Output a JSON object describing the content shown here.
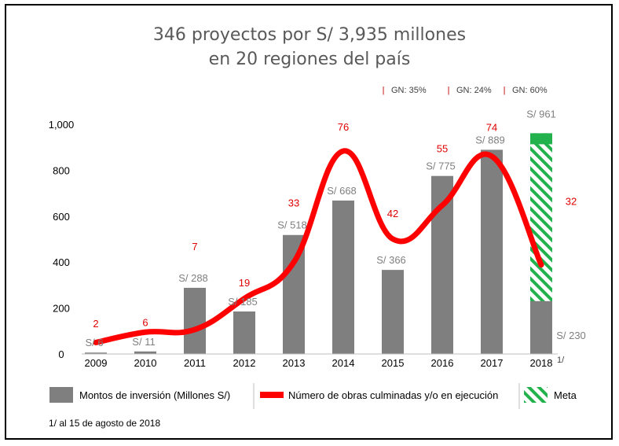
{
  "title": {
    "line1": "346 proyectos por S/ 3,935 millones",
    "line2": "en 20 regiones del país"
  },
  "chart_data": {
    "type": "bar",
    "title": "346 proyectos por S/ 3,935 millones en 20 regiones del país",
    "categories": [
      "2009",
      "2010",
      "2011",
      "2012",
      "2013",
      "2014",
      "2015",
      "2016",
      "2017",
      "2018"
    ],
    "ylim": [
      0,
      1000
    ],
    "yticks": [
      "0",
      "200",
      "400",
      "600",
      "800",
      "1,000"
    ],
    "series": [
      {
        "name": "Montos de inversión (Millones S/)",
        "type": "bar",
        "color": "#7f7f7f",
        "values": [
          6,
          11,
          288,
          185,
          518,
          668,
          366,
          775,
          889,
          230
        ],
        "labels": [
          "S/ 6",
          "S/ 11",
          "S/ 288",
          "S/ 185",
          "S/ 518",
          "S/ 668",
          "S/ 366",
          "S/ 775",
          "S/ 889",
          "S/ 230"
        ]
      },
      {
        "name": "Número de obras culminadas y/o en ejecución",
        "type": "line",
        "color": "#ff0000",
        "values": [
          2,
          6,
          7,
          19,
          33,
          76,
          42,
          55,
          74,
          32
        ],
        "labels": [
          "2",
          "6",
          "7",
          "19",
          "33",
          "76",
          "42",
          "55",
          "74",
          "32"
        ]
      },
      {
        "name": "Meta",
        "type": "bar",
        "color": "#22b14c",
        "values": [
          null,
          null,
          null,
          null,
          null,
          null,
          null,
          null,
          null,
          961
        ],
        "labels": [
          "",
          "",
          "",
          "",
          "",
          "",
          "",
          "",
          "",
          "S/ 961"
        ]
      }
    ],
    "gn_annotations": [
      "GN: 35%",
      "GN: 24%",
      "GN: 60%"
    ],
    "year_footnote_mark": "1/",
    "footnote": "1/ al 15 de agosto de 2018",
    "legend_position": "bottom"
  },
  "colors": {
    "bar": "#7f7f7f",
    "line": "#ff0000",
    "meta": "#22b14c",
    "count_label": "#e00000",
    "value_label": "#7f7f7f"
  }
}
